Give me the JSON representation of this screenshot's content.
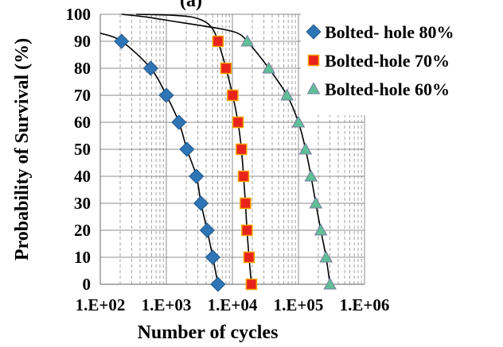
{
  "chart_data": {
    "type": "scatter",
    "title": "(a)",
    "xlabel": "Number of cycles",
    "ylabel": "Probability of Survival (%)",
    "x_scale": "log",
    "xlim": [
      100,
      1000000
    ],
    "ylim": [
      0,
      100
    ],
    "x_tick_values": [
      100,
      1000,
      10000,
      100000,
      1000000
    ],
    "x_tick_labels": [
      "1.E+02",
      "1.E+03",
      "1.E+04",
      "1.E+05",
      "1.E+06"
    ],
    "y_tick_values": [
      0,
      10,
      20,
      30,
      40,
      50,
      60,
      70,
      80,
      90,
      100
    ],
    "y_tick_labels": [
      "0",
      "10",
      "20",
      "30",
      "40",
      "50",
      "60",
      "70",
      "80",
      "90",
      "100"
    ],
    "grid": {
      "x_major": true,
      "x_minor": true,
      "y_major": true
    },
    "legend_position": "top-right",
    "series": [
      {
        "name": "Bolted- hole 80%",
        "marker": "diamond",
        "color": "#2E75B6",
        "x": [
          210,
          580,
          1000,
          1550,
          2050,
          2850,
          3350,
          4150,
          5050,
          6050
        ],
        "y": [
          90,
          80,
          70,
          60,
          50,
          40,
          30,
          20,
          10,
          0
        ],
        "fit_curve": {
          "x": [
            100,
            210,
            580,
            1000,
            1550,
            2050,
            2850,
            3350,
            4150,
            5050,
            6050
          ],
          "y": [
            93,
            90,
            80,
            70,
            60,
            50,
            40,
            30,
            20,
            10,
            0
          ]
        }
      },
      {
        "name": "Bolted-hole 70%",
        "marker": "square",
        "color": "#E8231C",
        "x": [
          6050,
          8000,
          10100,
          12150,
          13700,
          14750,
          15750,
          16650,
          17850,
          19400
        ],
        "y": [
          90,
          80,
          70,
          60,
          50,
          40,
          30,
          20,
          10,
          0
        ],
        "fit_curve": {
          "x": [
            350,
            1100,
            2400,
            4000,
            5200,
            6050,
            8000,
            10100,
            12150,
            13700,
            14750,
            15750,
            16650,
            17850,
            19400
          ],
          "y": [
            100,
            99.7,
            99,
            97,
            94,
            90,
            80,
            70,
            60,
            50,
            40,
            30,
            20,
            10,
            0
          ]
        }
      },
      {
        "name": "Bolted-hole 60%",
        "marker": "triangle",
        "color": "#5FBF97",
        "x": [
          16800,
          35500,
          67000,
          100000,
          128000,
          155000,
          183000,
          218000,
          262000,
          300000
        ],
        "y": [
          90,
          80,
          70,
          60,
          50,
          40,
          30,
          20,
          10,
          0
        ],
        "fit_curve": {
          "x": [
            210,
            500,
            1200,
            3000,
            7000,
            12000,
            16800,
            35500,
            67000,
            100000,
            128000,
            155000,
            183000,
            218000,
            262000,
            300000
          ],
          "y": [
            100,
            99,
            97.5,
            96,
            94.5,
            93,
            90,
            80,
            70,
            60,
            50,
            40,
            30,
            20,
            10,
            0
          ]
        }
      }
    ]
  }
}
